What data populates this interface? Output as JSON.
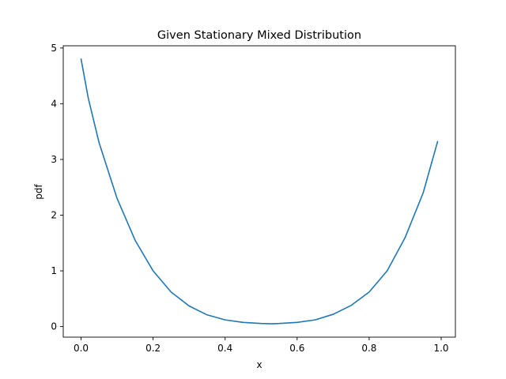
{
  "chart_data": {
    "type": "line",
    "title": "Given Stationary Mixed Distribution",
    "xlabel": "x",
    "ylabel": "pdf",
    "xlim": [
      -0.0495,
      1.0395
    ],
    "ylim": [
      -0.19,
      5.04
    ],
    "x_ticks": [
      "0.0",
      "0.2",
      "0.4",
      "0.6",
      "0.8",
      "1.0"
    ],
    "y_ticks": [
      "0",
      "1",
      "2",
      "3",
      "4",
      "5"
    ],
    "grid": false,
    "legend": "none",
    "series": [
      {
        "color": "#1f77b4",
        "x": [
          0.0,
          0.02,
          0.05,
          0.1,
          0.15,
          0.2,
          0.25,
          0.3,
          0.35,
          0.4,
          0.45,
          0.5,
          0.53,
          0.55,
          0.6,
          0.65,
          0.7,
          0.75,
          0.8,
          0.85,
          0.9,
          0.95,
          0.99
        ],
        "y": [
          4.8,
          4.1,
          3.3,
          2.3,
          1.55,
          1.0,
          0.62,
          0.37,
          0.21,
          0.12,
          0.075,
          0.055,
          0.05,
          0.055,
          0.075,
          0.12,
          0.22,
          0.38,
          0.62,
          1.0,
          1.6,
          2.4,
          3.32
        ]
      }
    ]
  }
}
